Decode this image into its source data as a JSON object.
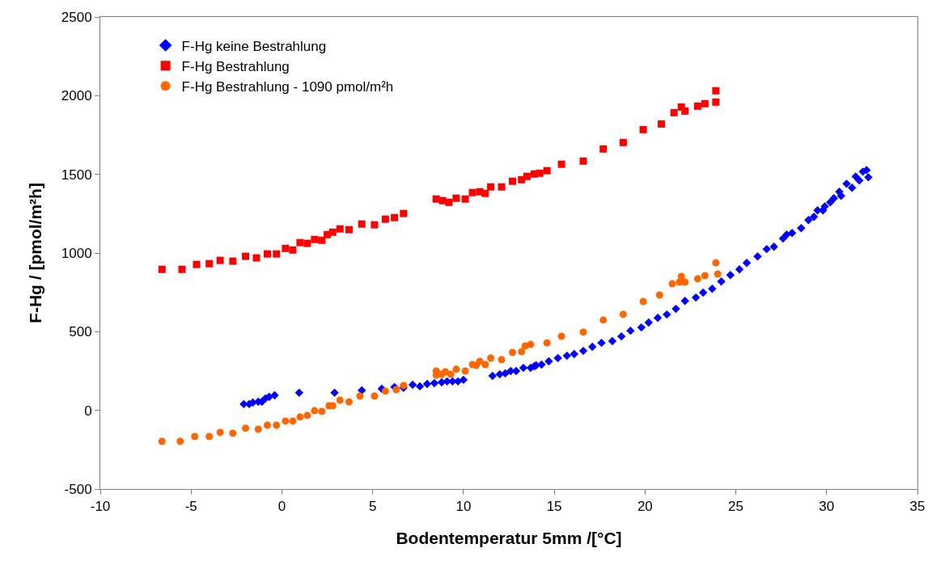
{
  "chart_data": {
    "type": "scatter",
    "xlabel": "Bodentemperatur 5mm /[°C]",
    "ylabel": "F-Hg / [pmol/m²h]",
    "xlim": [
      -10,
      35
    ],
    "xticks": [
      -10,
      -5,
      0,
      5,
      10,
      15,
      20,
      25,
      30,
      35
    ],
    "ylim": [
      -500,
      2500
    ],
    "yticks": [
      -500,
      0,
      500,
      1000,
      1500,
      2000,
      2500
    ],
    "grid": false,
    "legend": "top left",
    "series": [
      {
        "name": "F-Hg keine Bestrahlung",
        "color": "#0000ff",
        "marker": "diamond",
        "x": [
          -2.1,
          -1.8,
          -1.6,
          -1.3,
          -1.1,
          -0.9,
          -0.7,
          -0.4,
          0.95,
          2.9,
          4.4,
          5.5,
          6.2,
          6.7,
          7.2,
          7.6,
          8.0,
          8.4,
          8.8,
          9.1,
          9.4,
          9.7,
          10.0,
          11.6,
          12.0,
          12.3,
          12.6,
          12.9,
          13.3,
          13.7,
          13.9,
          14.0,
          14.3,
          14.7,
          15.2,
          15.7,
          16.1,
          16.6,
          17.1,
          17.6,
          18.2,
          18.7,
          19.2,
          19.8,
          20.2,
          20.7,
          21.2,
          21.7,
          22.2,
          22.8,
          23.2,
          23.7,
          24.2,
          24.7,
          25.2,
          25.6,
          26.2,
          26.7,
          27.1,
          27.6,
          27.8,
          28.1,
          28.6,
          29.0,
          29.3,
          29.5,
          29.8,
          29.9,
          30.2,
          30.4,
          30.7,
          30.8,
          31.1,
          31.4,
          31.6,
          31.8,
          32.0,
          32.2,
          32.3
        ],
        "values": [
          40,
          40,
          50,
          55,
          55,
          76,
          86,
          96,
          112,
          112,
          127,
          137,
          148,
          143,
          163,
          153,
          168,
          173,
          178,
          184,
          184,
          184,
          194,
          219,
          229,
          235,
          250,
          250,
          270,
          270,
          281,
          286,
          291,
          312,
          332,
          347,
          358,
          378,
          404,
          429,
          440,
          470,
          506,
          527,
          558,
          588,
          609,
          645,
          696,
          717,
          748,
          773,
          819,
          860,
          896,
          937,
          978,
          1025,
          1040,
          1092,
          1117,
          1127,
          1158,
          1209,
          1230,
          1271,
          1271,
          1296,
          1322,
          1348,
          1389,
          1363,
          1440,
          1415,
          1486,
          1461,
          1517,
          1527,
          1481
        ]
      },
      {
        "name": "F-Hg Bestrahlung",
        "color": "#ff0000",
        "marker": "square",
        "x": [
          -6.6,
          -5.5,
          -4.7,
          -4.0,
          -3.4,
          -2.7,
          -2.0,
          -1.4,
          -0.8,
          -0.3,
          0.2,
          0.6,
          1.0,
          1.4,
          1.8,
          2.2,
          2.5,
          2.8,
          3.2,
          3.7,
          4.4,
          5.1,
          5.7,
          6.2,
          6.7,
          8.5,
          8.85,
          9.2,
          9.6,
          10.1,
          10.5,
          10.9,
          11.2,
          11.5,
          12.1,
          12.7,
          13.2,
          13.5,
          13.9,
          14.2,
          14.6,
          15.4,
          16.6,
          17.7,
          18.8,
          19.9,
          20.9,
          21.6,
          22.0,
          22.2,
          22.9,
          23.3,
          23.9,
          23.9
        ],
        "values": [
          896,
          896,
          927,
          932,
          953,
          948,
          979,
          969,
          994,
          994,
          1029,
          1019,
          1066,
          1061,
          1086,
          1081,
          1117,
          1132,
          1153,
          1148,
          1184,
          1179,
          1215,
          1225,
          1251,
          1343,
          1333,
          1322,
          1348,
          1343,
          1384,
          1389,
          1379,
          1420,
          1420,
          1456,
          1466,
          1487,
          1502,
          1507,
          1523,
          1564,
          1584,
          1661,
          1702,
          1784,
          1820,
          1892,
          1928,
          1902,
          1933,
          1949,
          1959,
          2031
        ]
      },
      {
        "name": "F-Hg Bestrahlung - 1090 pmol/m²h",
        "color": "#ff6600",
        "marker": "circle",
        "x": [
          -6.6,
          -5.6,
          -4.8,
          -4.0,
          -3.4,
          -2.7,
          -2.0,
          -1.3,
          -0.8,
          -0.3,
          0.2,
          0.6,
          1.0,
          1.4,
          1.8,
          2.2,
          2.6,
          2.8,
          3.2,
          3.7,
          4.3,
          5.1,
          5.7,
          6.3,
          6.7,
          8.5,
          8.5,
          8.8,
          9.0,
          9.3,
          9.6,
          10.1,
          10.5,
          10.7,
          10.9,
          11.2,
          11.5,
          12.1,
          12.7,
          13.2,
          13.4,
          13.7,
          14.6,
          15.4,
          16.6,
          17.7,
          18.8,
          19.9,
          20.8,
          21.5,
          21.9,
          22.0,
          22.2,
          22.9,
          23.3,
          23.9,
          24.0
        ],
        "values": [
          -197,
          -197,
          -166,
          -166,
          -140,
          -145,
          -114,
          -120,
          -94,
          -94,
          -68,
          -68,
          -42,
          -32,
          -2,
          -7,
          29,
          29,
          65,
          54,
          91,
          91,
          122,
          132,
          158,
          250,
          224,
          229,
          245,
          229,
          261,
          250,
          291,
          286,
          312,
          291,
          332,
          322,
          368,
          373,
          409,
          419,
          429,
          471,
          497,
          574,
          610,
          692,
          733,
          805,
          815,
          851,
          815,
          836,
          856,
          938,
          866
        ]
      }
    ]
  }
}
